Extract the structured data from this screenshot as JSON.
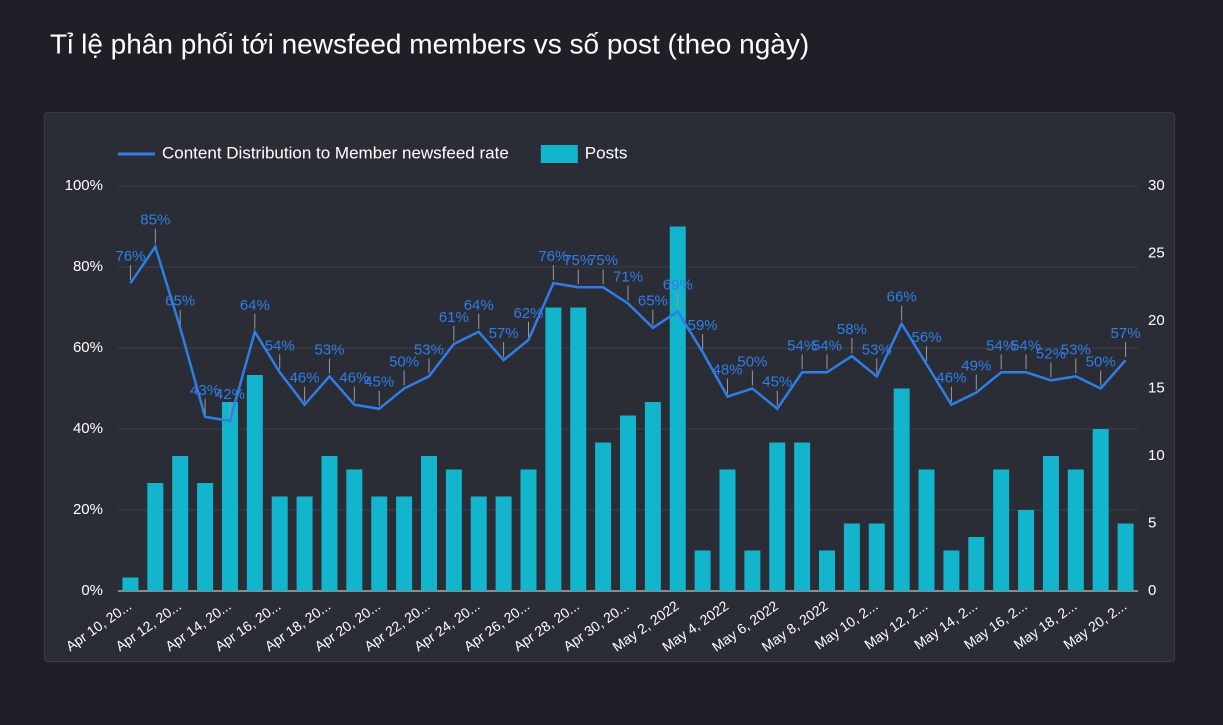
{
  "chart_data": {
    "type": "bar_line",
    "title": "Tỉ lệ phân phối tới newsfeed members vs số post (theo ngày)",
    "categories": [
      "Apr 10, 20...",
      null,
      "Apr 12, 20...",
      null,
      "Apr 14, 20...",
      null,
      "Apr 16, 20...",
      null,
      "Apr 18, 20...",
      null,
      "Apr 20, 20...",
      null,
      "Apr 22, 20...",
      null,
      "Apr 24, 20...",
      null,
      "Apr 26, 20...",
      null,
      "Apr 28, 20...",
      null,
      "Apr 30, 20...",
      null,
      "May 2, 2022",
      null,
      "May 4, 2022",
      null,
      "May 6, 2022",
      null,
      "May 8, 2022",
      null,
      "May 10, 2...",
      null,
      "May 12, 2...",
      null,
      "May 14, 2...",
      null,
      "May 16, 2...",
      null,
      "May 18, 2...",
      null,
      "May 20, 2..."
    ],
    "series": [
      {
        "name": "Content Distribution to Member newsfeed rate",
        "color": "#2f7ee6",
        "kind": "line",
        "axis": "y",
        "values": [
          76,
          85,
          65,
          43,
          42,
          64,
          54,
          46,
          53,
          46,
          45,
          50,
          53,
          61,
          64,
          57,
          62,
          76,
          75,
          75,
          71,
          65,
          69,
          59,
          48,
          50,
          45,
          54,
          54,
          58,
          53,
          66,
          56,
          46,
          49,
          54,
          54,
          52,
          53,
          50,
          57
        ],
        "value_labels": [
          "76%",
          "85%",
          "65%",
          "43%",
          "42%",
          "64%",
          "54%",
          "46%",
          "53%",
          "46%",
          "45%",
          "50%",
          "53%",
          "61%",
          "64%",
          "57%",
          "62%",
          "76%",
          "75%",
          "75%",
          "71%",
          "65%",
          "69%",
          "59%",
          "48%",
          "50%",
          "45%",
          "54%",
          "54%",
          "58%",
          "53%",
          "66%",
          "56%",
          "46%",
          "49%",
          "54%",
          "54%",
          "52%",
          "53%",
          "50%",
          "57%"
        ]
      },
      {
        "name": "Posts",
        "color": "#12b5cb",
        "kind": "bar",
        "axis": "y2",
        "values": [
          1,
          8,
          10,
          8,
          14,
          16,
          7,
          7,
          10,
          9,
          7,
          7,
          10,
          9,
          7,
          7,
          9,
          21,
          21,
          11,
          13,
          14,
          27,
          3,
          9,
          3,
          11,
          11,
          3,
          5,
          5,
          15,
          9,
          3,
          4,
          9,
          6,
          10,
          9,
          12,
          5
        ]
      }
    ],
    "ylim": [
      0,
      100
    ],
    "yticks": [
      {
        "value": 0,
        "label": "0%"
      },
      {
        "value": 20,
        "label": "20%"
      },
      {
        "value": 40,
        "label": "40%"
      },
      {
        "value": 60,
        "label": "60%"
      },
      {
        "value": 80,
        "label": "80%"
      },
      {
        "value": 100,
        "label": "100%"
      }
    ],
    "y2lim": [
      0,
      30
    ],
    "y2ticks": [
      0,
      5,
      10,
      15,
      20,
      25,
      30
    ],
    "grid": true,
    "legend": "top"
  }
}
